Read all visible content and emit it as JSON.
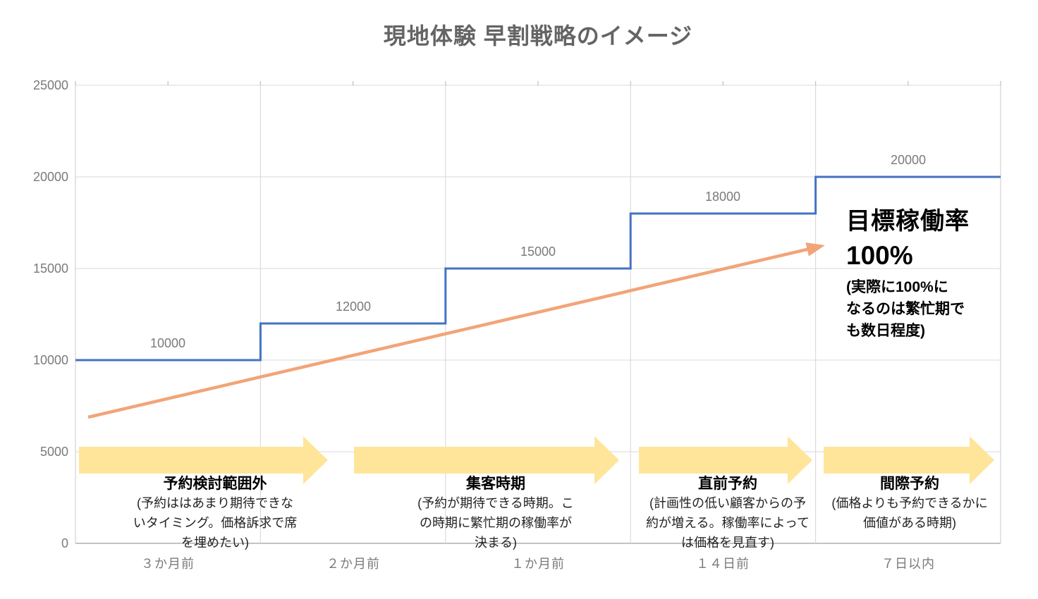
{
  "title": "現地体験 早割戦略のイメージ",
  "chart_data": {
    "type": "line",
    "subtype": "step",
    "title": "現地体験 早割戦略のイメージ",
    "categories": [
      "３か月前",
      "２か月前",
      "１か月前",
      "１４日前",
      "７日以内"
    ],
    "values": [
      10000,
      12000,
      15000,
      18000,
      20000
    ],
    "data_labels": [
      "10000",
      "12000",
      "15000",
      "18000",
      "20000"
    ],
    "y_tick_labels": [
      "25000",
      "20000",
      "15000",
      "10000",
      "5000",
      "0"
    ],
    "ylim": [
      0,
      25000
    ],
    "y_tick_step": 5000,
    "xlabel": "",
    "ylabel": "",
    "grid": true,
    "legend": "none"
  },
  "annotations": {
    "target": {
      "title": "目標稼働率",
      "value": "100%",
      "note_lines": [
        "(実際に100%に",
        "なるのは繁忙期で",
        "も数日程度)"
      ]
    },
    "phases": [
      {
        "title": "予約検討範囲外",
        "desc_lines": [
          "(予約ははあまり期待できな",
          "いタイミング。価格訴求で席",
          "を埋めたい)"
        ]
      },
      {
        "title": "集客時期",
        "desc_lines": [
          "(予約が期待できる時期。こ",
          "の時期に繁忙期の稼働率が",
          "決まる)"
        ]
      },
      {
        "title": "直前予約",
        "desc_lines": [
          "(計画性の低い顧客からの予",
          "約が増える。稼働率によって",
          "は価格を見直す)"
        ]
      },
      {
        "title": "間際予約",
        "desc_lines": [
          "(価格よりも予約できるかに",
          "価値がある時期)"
        ]
      }
    ]
  },
  "colors": {
    "series_blue": "#4472C4",
    "trend_orange": "#F2A477",
    "phase_yellow": "#FFE599",
    "gridline": "#D8D8D8",
    "plot_border": "#CFCFCF",
    "axis_line": "#AFAFAF",
    "tick_mark": "#BFBFBF",
    "axis_text": "#7A7A7A",
    "title_text": "#646464"
  }
}
